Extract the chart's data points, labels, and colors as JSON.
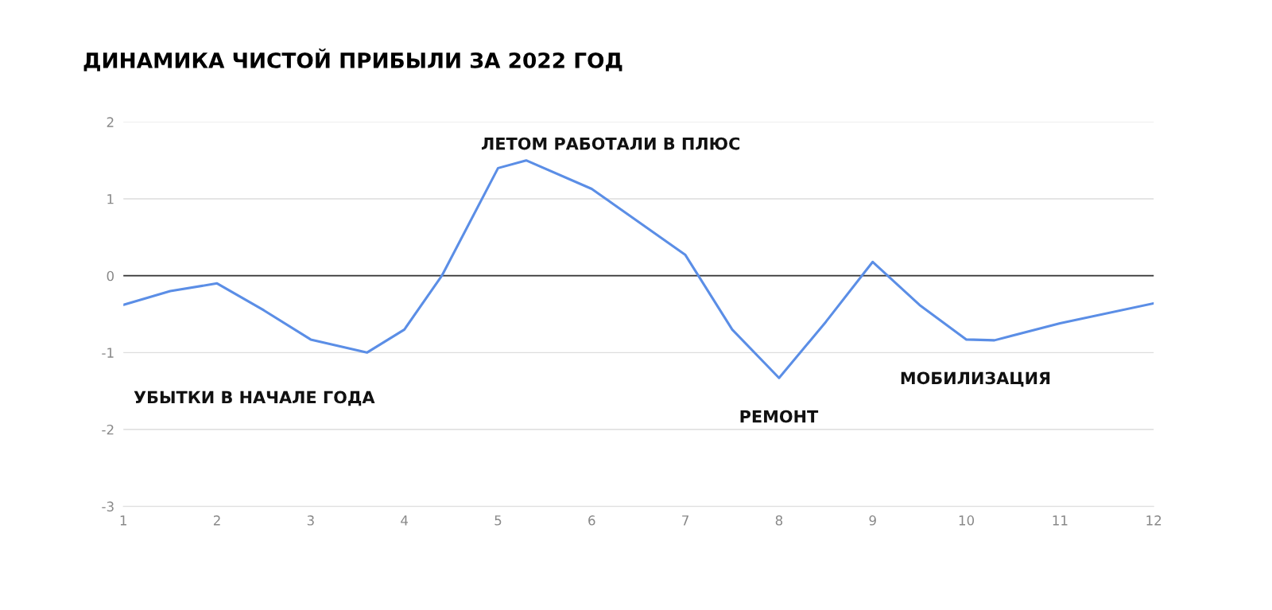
{
  "chart_data": {
    "type": "line",
    "title": "ДИНАМИКА ЧИСТОЙ ПРИБЫЛИ ЗА 2022 ГОД",
    "x": [
      1,
      1.5,
      2,
      2.5,
      3,
      3.6,
      4,
      4.4,
      5,
      5.3,
      6,
      6.5,
      7,
      7.5,
      8,
      8.5,
      9,
      9.5,
      10,
      10.3,
      11,
      12
    ],
    "series": [
      {
        "color": "#5b8ee6",
        "values": [
          -0.38,
          -0.2,
          -0.1,
          -0.45,
          -0.83,
          -1.0,
          -0.7,
          0,
          1.4,
          1.5,
          1.13,
          0.7,
          0.27,
          -0.7,
          -1.33,
          -0.6,
          0.18,
          -0.38,
          -0.83,
          -0.84,
          -0.62,
          -0.36
        ]
      }
    ],
    "xlim": [
      1,
      12
    ],
    "xticks": [
      1,
      2,
      3,
      4,
      5,
      6,
      7,
      8,
      9,
      10,
      11,
      12
    ],
    "ylim": [
      -3,
      2
    ],
    "yticks": [
      -3,
      -2,
      -1,
      0,
      1,
      2
    ],
    "grid": "y",
    "marker": "none",
    "line_style": "solid",
    "ref_lines": [
      {
        "axis": "y",
        "value": 0,
        "color": "#333333"
      }
    ],
    "annotations": [
      "УБЫТКИ В НАЧАЛЕ ГОДА",
      "ЛЕТОМ РАБОТАЛИ В ПЛЮС",
      "РЕМОНТ",
      "МОБИЛИЗАЦИЯ"
    ]
  }
}
